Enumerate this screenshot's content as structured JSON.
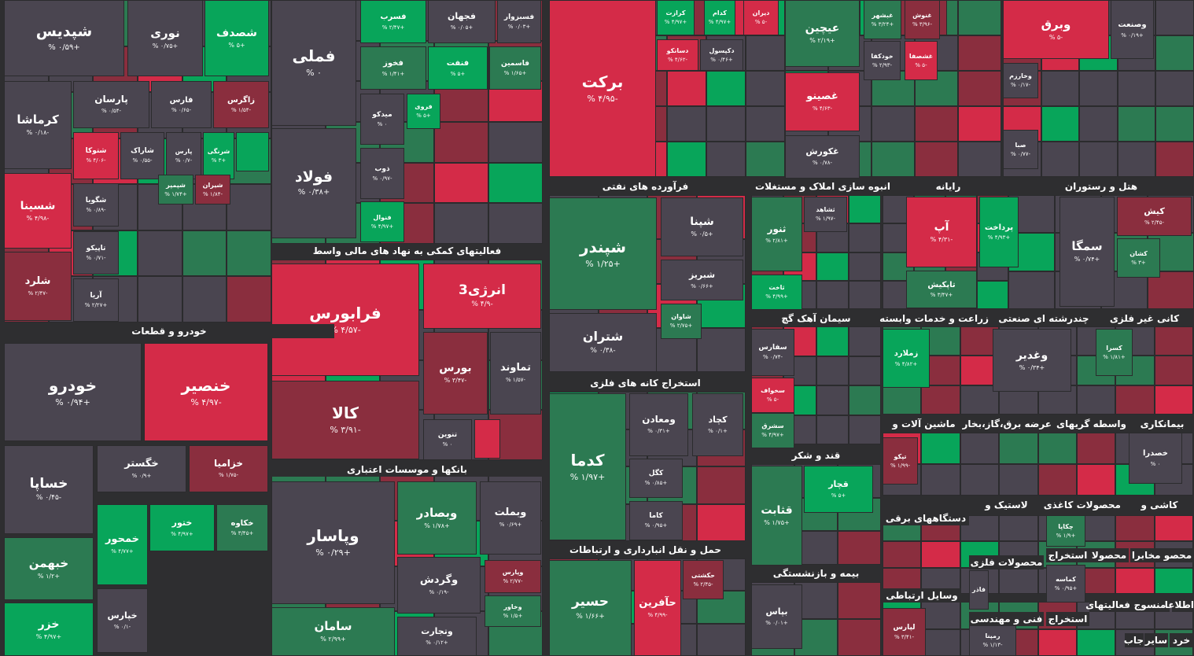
{
  "colors": {
    "neutral": "#4a4550",
    "up_strong": "#08a55a",
    "up": "#2c7a52",
    "down_strong": "#d42b48",
    "down": "#8a2e3e",
    "background": "#2e2e30"
  },
  "sectors": [
    {
      "label": "خودرو و قطعات"
    },
    {
      "label": "فعالیتهای کمکی به نهاد های مالی واسط"
    },
    {
      "label": "بانکها و موسسات اعتباری"
    },
    {
      "label": "فرآورده های نفتی"
    },
    {
      "label": "استخراج کانه های فلزی"
    },
    {
      "label": "حمل و نقل انبارداری و ارتباطات"
    },
    {
      "label": "انبوه سازی املاک و مستغلات"
    },
    {
      "label": "رایانه"
    },
    {
      "label": "هتل و رستوران"
    },
    {
      "label": "سیمان آهک گچ"
    },
    {
      "label": "زراعت و خدمات وابسته"
    },
    {
      "label": "چندرشته ای صنعتی"
    },
    {
      "label": "کانی غیر فلزی"
    },
    {
      "label": "قند و شکر"
    },
    {
      "label": "ماشین آلات و"
    },
    {
      "label": "عرضه برق،گاز،بخار"
    },
    {
      "label": "واسطه گریهای"
    },
    {
      "label": "بیمانکاری"
    },
    {
      "label": "دستگاههای برقی"
    },
    {
      "label": "لاستیک و"
    },
    {
      "label": "محصولات کاغذی"
    },
    {
      "label": "کاشی و"
    },
    {
      "label": "محصولات فلزی"
    },
    {
      "label": "استخراج"
    },
    {
      "label": "محصولا"
    },
    {
      "label": "محصو مخابرا"
    },
    {
      "label": "بیمه و بازنشستگی"
    },
    {
      "label": "وسایل ارتباطی"
    },
    {
      "label": "فعالیتهای"
    },
    {
      "label": "منسوج"
    },
    {
      "label": "اطلاعا"
    },
    {
      "label": "فنی و مهندسی"
    },
    {
      "label": "استخراج"
    },
    {
      "label": "جاب"
    },
    {
      "label": "سایر"
    },
    {
      "label": "خرد"
    }
  ],
  "tiles": [
    {
      "name": "شپدیس",
      "pct": "+۰/۵۹ %",
      "c": "neutral"
    },
    {
      "name": "نوری",
      "pct": "+۰/۷۵ %",
      "c": "neutral"
    },
    {
      "name": "شصدف",
      "pct": "+۵ %",
      "c": "up_strong"
    },
    {
      "name": "کرماشا",
      "pct": "-۰/۱۸ %",
      "c": "neutral"
    },
    {
      "name": "پارسان",
      "pct": "-۰/۵۴ %",
      "c": "neutral"
    },
    {
      "name": "فارس",
      "pct": "-۰/۶۵ %",
      "c": "neutral"
    },
    {
      "name": "زاگرس",
      "pct": "-۱/۵۴ %",
      "c": "down"
    },
    {
      "name": "شتوکا",
      "pct": "-۴/۰۶ %",
      "c": "down_strong"
    },
    {
      "name": "شاراک",
      "pct": "-۰/۵۵ %",
      "c": "neutral"
    },
    {
      "name": "پارس",
      "pct": "-۰/۷ %",
      "c": "neutral"
    },
    {
      "name": "شرنگی",
      "pct": "+۳ %",
      "c": "up_strong"
    },
    {
      "name": "",
      "pct": "",
      "c": "up_strong"
    },
    {
      "name": "شسینا",
      "pct": "-۴/۹۸ %",
      "c": "down_strong"
    },
    {
      "name": "شگویا",
      "pct": "-۰/۸۹ %",
      "c": "neutral"
    },
    {
      "name": "شپمپر",
      "pct": "+۱/۷۴ %",
      "c": "up"
    },
    {
      "name": "شیران",
      "pct": "-۱/۸۴ %",
      "c": "down"
    },
    {
      "name": "تاپیکو",
      "pct": "-۰/۷۱ %",
      "c": "neutral"
    },
    {
      "name": "شلرد",
      "pct": "-۲/۴۷ %",
      "c": "down"
    },
    {
      "name": "آریا",
      "pct": "+۲/۲۷ %",
      "c": "neutral"
    },
    {
      "name": "خودرو",
      "pct": "+۰/۹۴ %",
      "c": "neutral"
    },
    {
      "name": "خنصیر",
      "pct": "-۴/۹۷ %",
      "c": "down_strong"
    },
    {
      "name": "خساپا",
      "pct": "-۰/۴۵ %",
      "c": "neutral"
    },
    {
      "name": "خگستر",
      "pct": "+۰/۹ %",
      "c": "neutral"
    },
    {
      "name": "خزامیا",
      "pct": "-۱/۷۵ %",
      "c": "down"
    },
    {
      "name": "خمحور",
      "pct": "+۴/۷۷ %",
      "c": "up_strong"
    },
    {
      "name": "ختور",
      "pct": "+۴/۹۷ %",
      "c": "up_strong"
    },
    {
      "name": "خکاوه",
      "pct": "+۳/۴۵ %",
      "c": "up"
    },
    {
      "name": "خبهمن",
      "pct": "+۱/۲ %",
      "c": "up"
    },
    {
      "name": "خپارس",
      "pct": "-۰/۱ %",
      "c": "neutral"
    },
    {
      "name": "خزر",
      "pct": "+۴/۹۷ %",
      "c": "up_strong"
    },
    {
      "name": "فملی",
      "pct": "۰ %",
      "c": "neutral"
    },
    {
      "name": "فولاد",
      "pct": "+۰/۳۸ %",
      "c": "neutral"
    },
    {
      "name": "فسرب",
      "pct": "+۲/۴۷ %",
      "c": "up_strong"
    },
    {
      "name": "فجهان",
      "pct": "+۰/۰۵ %",
      "c": "neutral"
    },
    {
      "name": "فسبزوار",
      "pct": "+۰/۰۳ %",
      "c": "neutral"
    },
    {
      "name": "فخوز",
      "pct": "+۱/۴۱ %",
      "c": "up"
    },
    {
      "name": "فنفت",
      "pct": "+۵ %",
      "c": "up_strong"
    },
    {
      "name": "فاسمین",
      "pct": "+۱/۶۵ %",
      "c": "up"
    },
    {
      "name": "میدکو",
      "pct": "۰ %",
      "c": "neutral"
    },
    {
      "name": "فروی",
      "pct": "+۵ %",
      "c": "up_strong"
    },
    {
      "name": "ذوب",
      "pct": "-۰/۹۷ %",
      "c": "neutral"
    },
    {
      "name": "فنوال",
      "pct": "+۴/۹۷ %",
      "c": "up_strong"
    },
    {
      "name": "فرابورس",
      "pct": "-۴/۵۷ %",
      "c": "down_strong"
    },
    {
      "name": "انرژی3",
      "pct": "-۴/۹ %",
      "c": "down_strong"
    },
    {
      "name": "بورس",
      "pct": "-۳/۴۷ %",
      "c": "down"
    },
    {
      "name": "تماوند",
      "pct": "-۱/۵۷ %",
      "c": "neutral"
    },
    {
      "name": "کالا",
      "pct": "-۳/۹۱ %",
      "c": "down"
    },
    {
      "name": "تنوین",
      "pct": "۰ %",
      "c": "neutral"
    },
    {
      "name": "",
      "pct": "",
      "c": "down_strong"
    },
    {
      "name": "وپاسار",
      "pct": "+۰/۲۹ %",
      "c": "neutral"
    },
    {
      "name": "وبصادر",
      "pct": "+۱/۷۸ %",
      "c": "up"
    },
    {
      "name": "وبملت",
      "pct": "+۰/۶۹ %",
      "c": "neutral"
    },
    {
      "name": "وپارس",
      "pct": "-۲/۷۷ %",
      "c": "down"
    },
    {
      "name": "وگردش",
      "pct": "-۰/۱۹ %",
      "c": "neutral"
    },
    {
      "name": "وخاور",
      "pct": "+۱/۵ %",
      "c": "up"
    },
    {
      "name": "سامان",
      "pct": "+۲/۹۹ %",
      "c": "up"
    },
    {
      "name": "وتجارت",
      "pct": "+۰/۱۲ %",
      "c": "neutral"
    },
    {
      "name": "برکت",
      "pct": "-۴/۹۵ %",
      "c": "down_strong"
    },
    {
      "name": "کرازت",
      "pct": "+۴/۹۷ %",
      "c": "up_strong"
    },
    {
      "name": "کدام",
      "pct": "+۴/۹۷ %",
      "c": "up_strong"
    },
    {
      "name": "دیران",
      "pct": "-۵ %",
      "c": "down_strong"
    },
    {
      "name": "دسانکو",
      "pct": "-۴/۶۲ %",
      "c": "down_strong"
    },
    {
      "name": "دکپسول",
      "pct": "+۰/۴۶ %",
      "c": "neutral"
    },
    {
      "name": "شپندر",
      "pct": "+۱/۲۵ %",
      "c": "up"
    },
    {
      "name": "شپنا",
      "pct": "+۰/۵ %",
      "c": "neutral"
    },
    {
      "name": "شبریز",
      "pct": "+۰/۶۶ %",
      "c": "neutral"
    },
    {
      "name": "شاوان",
      "pct": "+۲/۷۵ %",
      "c": "up"
    },
    {
      "name": "شتران",
      "pct": "-۰/۳۸ %",
      "c": "neutral"
    },
    {
      "name": "کدما",
      "pct": "+۱/۹۷ %",
      "c": "up"
    },
    {
      "name": "ومعادن",
      "pct": "+۰/۳۱ %",
      "c": "neutral"
    },
    {
      "name": "کچاد",
      "pct": "+۰/۱ %",
      "c": "neutral"
    },
    {
      "name": "کگل",
      "pct": "+۰/۸۵ %",
      "c": "neutral"
    },
    {
      "name": "کاما",
      "pct": "+۰/۹۵ %",
      "c": "neutral"
    },
    {
      "name": "حسیر",
      "pct": "+۱/۶۶ %",
      "c": "up"
    },
    {
      "name": "حآفرین",
      "pct": "-۴/۹۹ %",
      "c": "down_strong"
    },
    {
      "name": "حکشتی",
      "pct": "-۲/۴۵ %",
      "c": "down"
    },
    {
      "name": "ثجنوب",
      "pct": "+۲/۳۹ %",
      "c": "up_strong"
    },
    {
      "name": "ثعمرا",
      "pct": "-۳/۹۱ %",
      "c": "down"
    },
    {
      "name": "وبرق",
      "pct": "-۵ %",
      "c": "down_strong"
    },
    {
      "name": "وصنعت",
      "pct": "+۰/۱۹ %",
      "c": "neutral"
    },
    {
      "name": "عیچین",
      "pct": "+۲/۱۹ %",
      "c": "up"
    },
    {
      "name": "غبشهر",
      "pct": "+۳/۲۴ %",
      "c": "up"
    },
    {
      "name": "غنوش",
      "pct": "-۳/۹۶ %",
      "c": "down"
    },
    {
      "name": "خودکفا",
      "pct": "-۲/۹۳ %",
      "c": "neutral"
    },
    {
      "name": "غشصفا",
      "pct": "-۵ %",
      "c": "down_strong"
    },
    {
      "name": "غصینو",
      "pct": "-۴/۶۳ %",
      "c": "down_strong"
    },
    {
      "name": "غکورش",
      "pct": "-۰/۷۸ %",
      "c": "neutral"
    },
    {
      "name": "وخارزم",
      "pct": "-۰/۱۷ %",
      "c": "neutral"
    },
    {
      "name": "صبا",
      "pct": "-۰/۷۷ %",
      "c": "neutral"
    },
    {
      "name": "ثنور",
      "pct": "+۲/۸۱ %",
      "c": "up"
    },
    {
      "name": "ثشاهد",
      "pct": "-۱/۹۷ %",
      "c": "neutral"
    },
    {
      "name": "ثاخت",
      "pct": "+۴/۹۹ %",
      "c": "up_strong"
    },
    {
      "name": "آپ",
      "pct": "-۴/۳۱ %",
      "c": "down_strong"
    },
    {
      "name": "پرداخت",
      "pct": "+۴/۹۳ %",
      "c": "up_strong"
    },
    {
      "name": "تاپکیش",
      "pct": "+۳/۴۷ %",
      "c": "up"
    },
    {
      "name": "سمگا",
      "pct": "+۰/۷۴ %",
      "c": "neutral"
    },
    {
      "name": "کیش",
      "pct": "-۲/۴۵ %",
      "c": "down"
    },
    {
      "name": "کشان",
      "pct": "+۳ %",
      "c": "up"
    },
    {
      "name": "سفارس",
      "pct": "-۰/۷۴ %",
      "c": "neutral"
    },
    {
      "name": "سخواف",
      "pct": "-۵ %",
      "c": "down_strong"
    },
    {
      "name": "سشرق",
      "pct": "+۴/۹۷ %",
      "c": "up"
    },
    {
      "name": "زملارد",
      "pct": "+۴/۸۲ %",
      "c": "up_strong"
    },
    {
      "name": "وغدیر",
      "pct": "+۰/۳۴ %",
      "c": "neutral"
    },
    {
      "name": "کسرا",
      "pct": "+۱/۸۱ %",
      "c": "up"
    },
    {
      "name": "قثابت",
      "pct": "+۱/۷۵ %",
      "c": "up"
    },
    {
      "name": "قچار",
      "pct": "+۵ %",
      "c": "up_strong"
    },
    {
      "name": "تپکو",
      "pct": "-۱/۹۹ %",
      "c": "down"
    },
    {
      "name": "خصدرا",
      "pct": "۰ %",
      "c": "neutral"
    },
    {
      "name": "چکاپا",
      "pct": "+۱/۹ %",
      "c": "up"
    },
    {
      "name": "کماسه",
      "pct": "+۰/۹۵ %",
      "c": "neutral"
    },
    {
      "name": "فاذر",
      "pct": "۰ %",
      "c": "neutral"
    },
    {
      "name": "بپاس",
      "pct": "+۰/۰۱ %",
      "c": "neutral"
    },
    {
      "name": "لپارس",
      "pct": "-۳/۴۱ %",
      "c": "down"
    },
    {
      "name": "رمپنا",
      "pct": "-۱/۱۳ %",
      "c": "neutral"
    }
  ]
}
